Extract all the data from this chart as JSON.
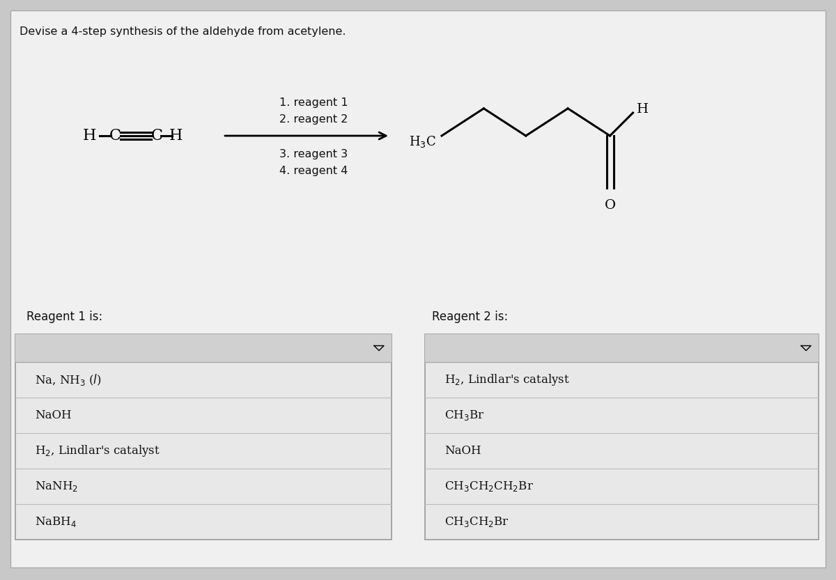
{
  "title": "Devise a 4-step synthesis of the aldehyde from acetylene.",
  "bg_color": "#c8c8c8",
  "panel_bg": "#d8d8d8",
  "box_bg": "#e0e0e0",
  "box_header_bg": "#c8c8c8",
  "box_border": "#999999",
  "text_color": "#111111",
  "reagent1_label": "Reagent 1 is:",
  "reagent2_label": "Reagent 2 is:",
  "reagents_above": [
    "1. reagent 1",
    "2. reagent 2"
  ],
  "reagents_below": [
    "3. reagent 3",
    "4. reagent 4"
  ],
  "left_options": [
    "Na, NH$_3$ ($l$)",
    "NaOH",
    "H$_2$, Lindlar's catalyst",
    "NaNH$_2$",
    "NaBH$_4$"
  ],
  "right_options": [
    "H$_2$, Lindlar's catalyst",
    "CH$_3$Br",
    "NaOH",
    "CH$_3$CH$_2$CH$_2$Br",
    "CH$_3$CH$_2$Br"
  ]
}
